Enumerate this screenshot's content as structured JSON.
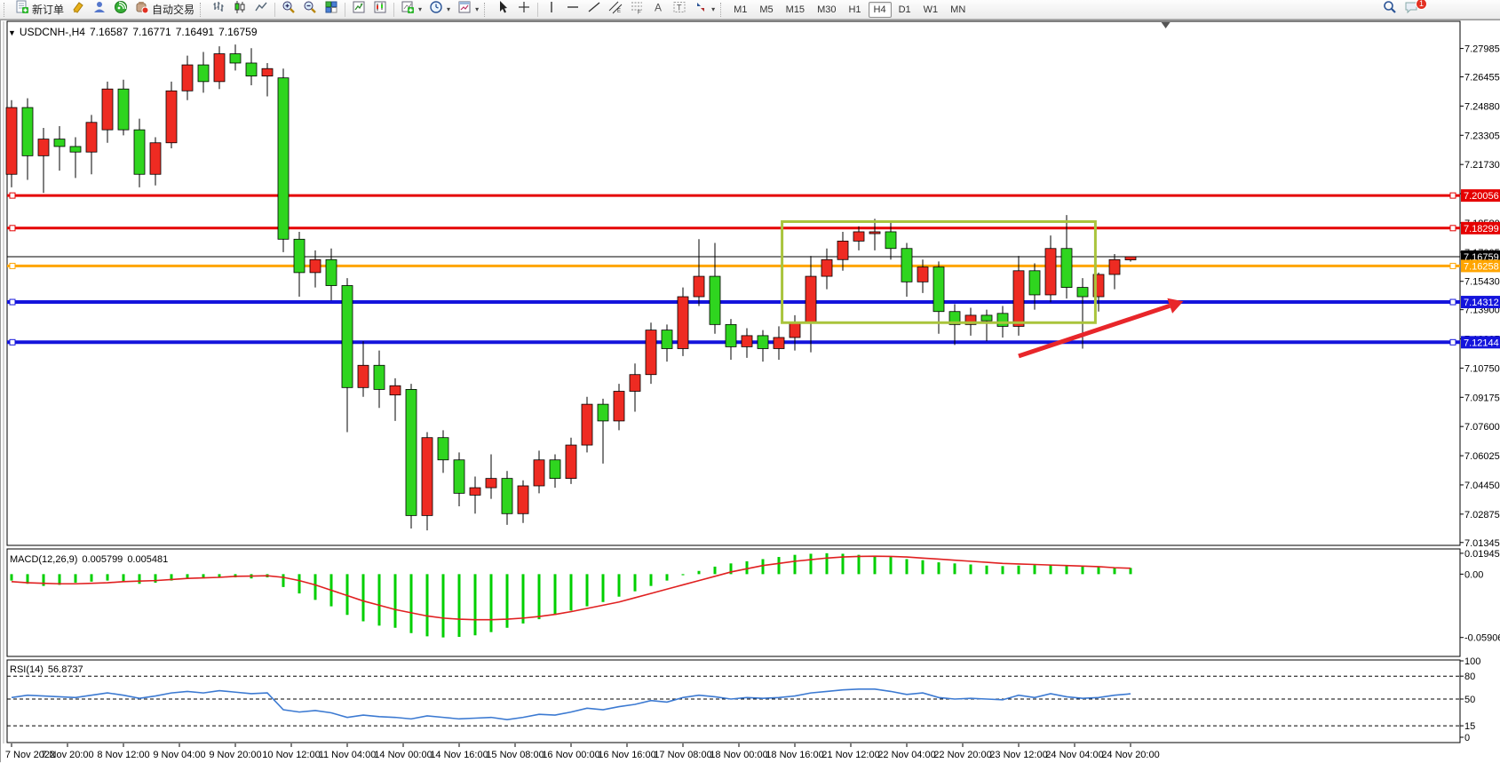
{
  "toolbar": {
    "new_order_label": "新订单",
    "auto_trading_label": "自动交易",
    "timeframes": [
      {
        "label": "M1",
        "active": false
      },
      {
        "label": "M5",
        "active": false
      },
      {
        "label": "M15",
        "active": false
      },
      {
        "label": "M30",
        "active": false
      },
      {
        "label": "H1",
        "active": false
      },
      {
        "label": "H4",
        "active": true
      },
      {
        "label": "D1",
        "active": false
      },
      {
        "label": "W1",
        "active": false
      },
      {
        "label": "MN",
        "active": false
      }
    ],
    "notification_count": "1"
  },
  "chart_data": {
    "type": "candlestick",
    "symbol": "USDCNH-",
    "timeframe": "H4",
    "title": "USDCNH-,H4",
    "ohlc_display": {
      "open": "7.16587",
      "high": "7.16771",
      "low": "7.16491",
      "close": "7.16759"
    },
    "up_color": "#ee2b22",
    "down_color": "#2fd51f",
    "price_axis": {
      "range": [
        7.0119,
        7.2945
      ],
      "ticks": [
        "7.27985",
        "7.26455",
        "7.24880",
        "7.23305",
        "7.21730",
        "7.20155",
        "7.18580",
        "7.17005",
        "7.15430",
        "7.13900",
        "7.12325",
        "7.10750",
        "7.09175",
        "7.07600",
        "7.06025",
        "7.04450",
        "7.02875",
        "7.01345"
      ]
    },
    "time_axis": {
      "labels": [
        "7 Nov 2022",
        "7 Nov 20:00",
        "8 Nov 12:00",
        "9 Nov 04:00",
        "9 Nov 20:00",
        "10 Nov 12:00",
        "11 Nov 04:00",
        "14 Nov 00:00",
        "14 Nov 16:00",
        "15 Nov 08:00",
        "16 Nov 00:00",
        "16 Nov 16:00",
        "17 Nov 08:00",
        "18 Nov 00:00",
        "18 Nov 16:00",
        "21 Nov 12:00",
        "22 Nov 04:00",
        "22 Nov 20:00",
        "23 Nov 12:00",
        "24 Nov 04:00",
        "24 Nov 20:00"
      ]
    },
    "candles": [
      [
        7.212,
        7.252,
        7.205,
        7.248
      ],
      [
        7.248,
        7.253,
        7.209,
        7.222
      ],
      [
        7.222,
        7.237,
        7.202,
        7.231
      ],
      [
        7.231,
        7.238,
        7.214,
        7.227
      ],
      [
        7.227,
        7.232,
        7.21,
        7.224
      ],
      [
        7.224,
        7.244,
        7.212,
        7.24
      ],
      [
        7.236,
        7.262,
        7.229,
        7.258
      ],
      [
        7.258,
        7.263,
        7.233,
        7.236
      ],
      [
        7.236,
        7.242,
        7.205,
        7.212
      ],
      [
        7.212,
        7.232,
        7.206,
        7.229
      ],
      [
        7.229,
        7.262,
        7.226,
        7.257
      ],
      [
        7.257,
        7.276,
        7.252,
        7.271
      ],
      [
        7.271,
        7.278,
        7.256,
        7.262
      ],
      [
        7.262,
        7.281,
        7.258,
        7.277
      ],
      [
        7.277,
        7.282,
        7.268,
        7.272
      ],
      [
        7.272,
        7.28,
        7.26,
        7.265
      ],
      [
        7.265,
        7.272,
        7.254,
        7.269
      ],
      [
        7.264,
        7.269,
        7.17,
        7.177
      ],
      [
        7.177,
        7.181,
        7.146,
        7.159
      ],
      [
        7.159,
        7.171,
        7.151,
        7.166
      ],
      [
        7.166,
        7.172,
        7.144,
        7.152
      ],
      [
        7.152,
        7.156,
        7.073,
        7.097
      ],
      [
        7.097,
        7.122,
        7.092,
        7.109
      ],
      [
        7.109,
        7.117,
        7.086,
        7.096
      ],
      [
        7.093,
        7.102,
        7.079,
        7.098
      ],
      [
        7.096,
        7.099,
        7.021,
        7.028
      ],
      [
        7.028,
        7.073,
        7.02,
        7.07
      ],
      [
        7.07,
        7.074,
        7.051,
        7.058
      ],
      [
        7.058,
        7.062,
        7.033,
        7.04
      ],
      [
        7.039,
        7.049,
        7.029,
        7.043
      ],
      [
        7.043,
        7.061,
        7.037,
        7.048
      ],
      [
        7.048,
        7.052,
        7.023,
        7.029
      ],
      [
        7.029,
        7.047,
        7.024,
        7.044
      ],
      [
        7.044,
        7.063,
        7.04,
        7.058
      ],
      [
        7.058,
        7.061,
        7.043,
        7.048
      ],
      [
        7.048,
        7.07,
        7.045,
        7.066
      ],
      [
        7.066,
        7.092,
        7.062,
        7.088
      ],
      [
        7.088,
        7.091,
        7.056,
        7.079
      ],
      [
        7.079,
        7.099,
        7.074,
        7.095
      ],
      [
        7.095,
        7.11,
        7.084,
        7.104
      ],
      [
        7.104,
        7.132,
        7.099,
        7.128
      ],
      [
        7.128,
        7.131,
        7.111,
        7.118
      ],
      [
        7.118,
        7.151,
        7.114,
        7.146
      ],
      [
        7.146,
        7.177,
        7.141,
        7.157
      ],
      [
        7.157,
        7.175,
        7.126,
        7.131
      ],
      [
        7.131,
        7.134,
        7.112,
        7.119
      ],
      [
        7.119,
        7.129,
        7.113,
        7.125
      ],
      [
        7.125,
        7.128,
        7.111,
        7.118
      ],
      [
        7.118,
        7.13,
        7.112,
        7.124
      ],
      [
        7.124,
        7.136,
        7.117,
        7.132
      ],
      [
        7.132,
        7.168,
        7.116,
        7.157
      ],
      [
        7.157,
        7.172,
        7.15,
        7.166
      ],
      [
        7.166,
        7.181,
        7.16,
        7.176
      ],
      [
        7.176,
        7.184,
        7.171,
        7.181
      ],
      [
        7.18,
        7.188,
        7.171,
        7.181
      ],
      [
        7.181,
        7.187,
        7.166,
        7.172
      ],
      [
        7.172,
        7.175,
        7.146,
        7.154
      ],
      [
        7.154,
        7.166,
        7.148,
        7.162
      ],
      [
        7.162,
        7.165,
        7.126,
        7.138
      ],
      [
        7.138,
        7.142,
        7.12,
        7.131
      ],
      [
        7.131,
        7.14,
        7.125,
        7.136
      ],
      [
        7.136,
        7.139,
        7.122,
        7.133
      ],
      [
        7.137,
        7.141,
        7.124,
        7.13
      ],
      [
        7.13,
        7.168,
        7.125,
        7.16
      ],
      [
        7.16,
        7.164,
        7.139,
        7.147
      ],
      [
        7.147,
        7.179,
        7.143,
        7.172
      ],
      [
        7.172,
        7.19,
        7.145,
        7.151
      ],
      [
        7.151,
        7.156,
        7.118,
        7.146
      ],
      [
        7.146,
        7.159,
        7.138,
        7.158
      ],
      [
        7.158,
        7.169,
        7.15,
        7.166
      ],
      [
        7.16587,
        7.16771,
        7.16491,
        7.16759
      ]
    ],
    "hlines": [
      {
        "price": 7.20056,
        "label": "7.20056",
        "color": "#e50000",
        "width": 3,
        "anchors": true,
        "role": "resistance"
      },
      {
        "price": 7.18299,
        "label": "7.18299",
        "color": "#e50000",
        "width": 3,
        "anchors": true,
        "role": "resistance"
      },
      {
        "price": 7.16759,
        "label": "7.16759",
        "color": "#000000",
        "width": 1,
        "anchors": false,
        "role": "current-price"
      },
      {
        "price": 7.16258,
        "label": "7.16258",
        "color": "#ffa500",
        "width": 3,
        "anchors": true,
        "role": "level"
      },
      {
        "price": 7.14312,
        "label": "7.14312",
        "color": "#1414dc",
        "width": 4,
        "anchors": true,
        "role": "support"
      },
      {
        "price": 7.12144,
        "label": "7.12144",
        "color": "#1414dc",
        "width": 4,
        "anchors": true,
        "role": "support"
      }
    ],
    "rectangle": {
      "bar_start": 48.2,
      "bar_end": 67.8,
      "price_top": 7.1865,
      "price_bottom": 7.132,
      "color": "#a9c43c",
      "stroke_width": 3
    },
    "arrow": {
      "bar_start": 63.0,
      "price_start": 7.114,
      "bar_end": 73.3,
      "price_end": 7.1435,
      "color": "#e8262a",
      "width": 5
    },
    "shift_marker_bar": 72.2,
    "macd": {
      "label": "MACD(12,26,9)",
      "values": [
        "0.005799",
        "0.005481"
      ],
      "ticks": [
        "0.019452",
        "0.00",
        "-0.059068"
      ],
      "range": [
        -0.0767,
        0.0235
      ],
      "histogram_color": "#00cf00",
      "signal_color": "#e02020",
      "histogram": [
        -0.006,
        -0.009,
        -0.011,
        -0.01,
        -0.008,
        -0.007,
        -0.006,
        -0.007,
        -0.009,
        -0.008,
        -0.006,
        -0.004,
        -0.004,
        -0.003,
        -0.003,
        -0.004,
        -0.003,
        -0.012,
        -0.018,
        -0.024,
        -0.03,
        -0.038,
        -0.044,
        -0.048,
        -0.05,
        -0.055,
        -0.058,
        -0.059,
        -0.0585,
        -0.057,
        -0.054,
        -0.05,
        -0.046,
        -0.042,
        -0.038,
        -0.034,
        -0.03,
        -0.026,
        -0.021,
        -0.016,
        -0.011,
        -0.006,
        -0.001,
        0.003,
        0.007,
        0.01,
        0.012,
        0.014,
        0.016,
        0.018,
        0.019,
        0.0195,
        0.019,
        0.018,
        0.017,
        0.016,
        0.014,
        0.013,
        0.011,
        0.01,
        0.009,
        0.008,
        0.0075,
        0.008,
        0.0085,
        0.009,
        0.008,
        0.007,
        0.0065,
        0.006,
        0.0058
      ],
      "signal": [
        -0.007,
        -0.008,
        -0.0085,
        -0.009,
        -0.009,
        -0.0085,
        -0.008,
        -0.007,
        -0.0065,
        -0.006,
        -0.005,
        -0.004,
        -0.0035,
        -0.003,
        -0.002,
        -0.0018,
        -0.0015,
        -0.003,
        -0.006,
        -0.01,
        -0.015,
        -0.02,
        -0.025,
        -0.029,
        -0.033,
        -0.036,
        -0.039,
        -0.041,
        -0.042,
        -0.0425,
        -0.0425,
        -0.042,
        -0.041,
        -0.0395,
        -0.0375,
        -0.035,
        -0.032,
        -0.029,
        -0.026,
        -0.022,
        -0.018,
        -0.014,
        -0.01,
        -0.006,
        -0.002,
        0.002,
        0.005,
        0.008,
        0.01,
        0.012,
        0.0135,
        0.015,
        0.016,
        0.0165,
        0.0167,
        0.0165,
        0.016,
        0.015,
        0.014,
        0.013,
        0.012,
        0.011,
        0.01,
        0.0095,
        0.009,
        0.0085,
        0.008,
        0.0075,
        0.007,
        0.006,
        0.0055
      ]
    },
    "rsi": {
      "label": "RSI(14)",
      "value": "56.8737",
      "ticks": [
        "100",
        "80",
        "50",
        "15",
        "0"
      ],
      "levels": [
        80,
        50,
        15
      ],
      "range": [
        0,
        100
      ],
      "color": "#3c7ad2",
      "values": [
        52,
        55,
        54,
        53,
        52,
        55,
        58,
        55,
        51,
        54,
        58,
        60,
        58,
        61,
        59,
        57,
        58,
        36,
        33,
        35,
        32,
        26,
        29,
        27,
        26,
        24,
        28,
        26,
        24,
        25,
        26,
        23,
        26,
        30,
        29,
        33,
        38,
        36,
        40,
        43,
        48,
        46,
        52,
        55,
        53,
        50,
        52,
        51,
        52,
        54,
        58,
        60,
        62,
        63,
        63,
        60,
        56,
        58,
        52,
        50,
        51,
        50,
        49,
        55,
        52,
        57,
        53,
        51,
        52,
        55,
        56.87
      ]
    }
  }
}
